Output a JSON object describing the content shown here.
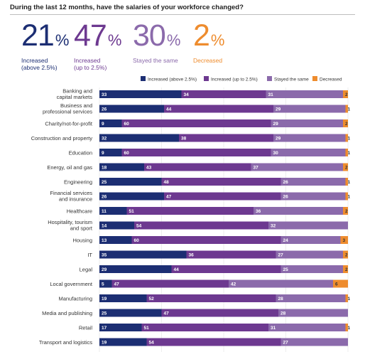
{
  "question": "During the last 12 months, have the salaries of your workforce changed?",
  "summary": [
    {
      "value": "21",
      "symbol": "%",
      "line1": "Increased",
      "line2": "(above 2.5%)",
      "color": "#1c2e73"
    },
    {
      "value": "47",
      "symbol": "%",
      "line1": "Increased",
      "line2": "(up to 2.5%)",
      "color": "#6d3990"
    },
    {
      "value": "30",
      "symbol": "%",
      "line1": "Stayed the same",
      "line2": "",
      "color": "#8b6aab"
    },
    {
      "value": "2",
      "symbol": "%",
      "line1": "Decreased",
      "line2": "",
      "color": "#ee8c2e"
    }
  ],
  "chart_data": {
    "type": "bar",
    "orientation": "horizontal",
    "stacked": true,
    "legend_position": "top-right",
    "categories": [
      [
        "Banking and",
        "capital markets"
      ],
      [
        "Business and",
        "professional services"
      ],
      [
        "Charity/not-for-profit"
      ],
      [
        "Construction and property"
      ],
      [
        "Education"
      ],
      [
        "Energy, oil and gas"
      ],
      [
        "Engineering"
      ],
      [
        "Financial services",
        "and insurance"
      ],
      [
        "Healthcare"
      ],
      [
        "Hospitality, tourism",
        "and sport"
      ],
      [
        "Housing"
      ],
      [
        "IT"
      ],
      [
        "Legal"
      ],
      [
        "Local government"
      ],
      [
        "Manufacturing"
      ],
      [
        "Media and publishing"
      ],
      [
        "Retail"
      ],
      [
        "Transport and logistics"
      ]
    ],
    "series": [
      {
        "name": "Increased (above 2.5%)",
        "color": "#1c2e73",
        "label_color": "#ffffff",
        "values": [
          33,
          26,
          9,
          32,
          9,
          18,
          25,
          26,
          11,
          14,
          13,
          35,
          29,
          5,
          19,
          25,
          17,
          19
        ]
      },
      {
        "name": "Increased (up to 2.5%)",
        "color": "#6d3990",
        "label_color": "#ffffff",
        "values": [
          34,
          44,
          60,
          38,
          60,
          43,
          48,
          47,
          51,
          54,
          60,
          36,
          44,
          47,
          52,
          47,
          51,
          54
        ]
      },
      {
        "name": "Stayed the same",
        "color": "#8b6aab",
        "label_color": "#ffffff",
        "values": [
          31,
          29,
          29,
          29,
          30,
          37,
          26,
          26,
          36,
          32,
          24,
          27,
          25,
          42,
          28,
          28,
          31,
          27
        ]
      },
      {
        "name": "Decreased",
        "color": "#ee8c2e",
        "label_color": "#333333",
        "values": [
          2,
          1,
          2,
          1,
          1,
          2,
          1,
          1,
          2,
          0,
          3,
          2,
          2,
          6,
          1,
          0,
          1,
          0
        ]
      }
    ]
  }
}
